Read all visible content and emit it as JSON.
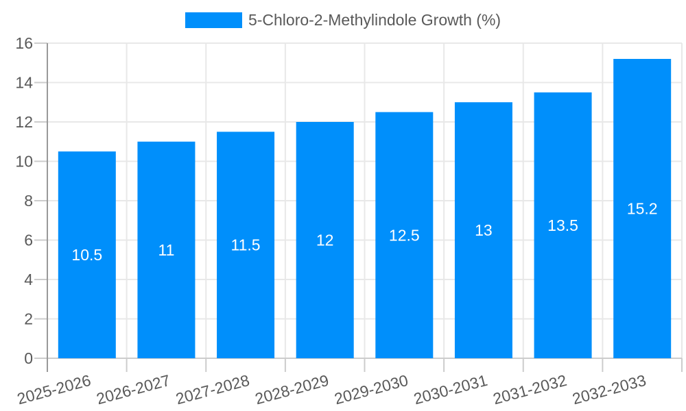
{
  "legend": {
    "label": "5-Chloro-2-Methylindole Growth (%)"
  },
  "chart_data": {
    "type": "bar",
    "title": "5-Chloro-2-Methylindole Growth (%)",
    "categories": [
      "2025-2026",
      "2026-2027",
      "2027-2028",
      "2028-2029",
      "2029-2030",
      "2030-2031",
      "2031-2032",
      "2032-2033"
    ],
    "values": [
      10.5,
      11,
      11.5,
      12,
      12.5,
      13,
      13.5,
      15.2
    ],
    "value_labels": [
      "10.5",
      "11",
      "11.5",
      "12",
      "12.5",
      "13",
      "13.5",
      "15.2"
    ],
    "y_tick_labels": [
      "0",
      "2",
      "4",
      "6",
      "8",
      "10",
      "12",
      "14",
      "16"
    ],
    "xlabel": "",
    "ylabel": "",
    "ylim": [
      0,
      16
    ],
    "y_tick_step": 2,
    "grid": true,
    "legend_position": "top",
    "value_label_position": "inside-center"
  },
  "colors": {
    "bar": "#008ffb",
    "grid": "#e8e8e8",
    "y_axis_line": "#999999",
    "x_axis_line": "#cccccc",
    "tick": "#cccccc",
    "axis_label": "#595959",
    "value_label": "#ffffff"
  }
}
